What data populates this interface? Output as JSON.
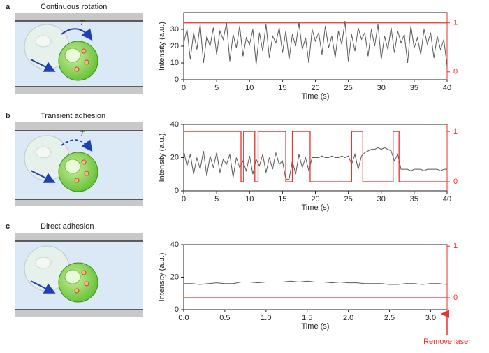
{
  "chart_data": [
    {
      "type": "line",
      "panel_label": "a",
      "title": "Continuous rotation",
      "diagram_label": "T",
      "x_label": "Time (s)",
      "y_label": "Intensity (a.u.)",
      "xlim": [
        0,
        40
      ],
      "xticks": [
        0,
        5,
        10,
        15,
        20,
        25,
        30,
        35,
        40
      ],
      "ylim": [
        0,
        40
      ],
      "yticks": [
        0,
        10,
        20,
        30
      ],
      "y2lim": [
        -0.16,
        1.21
      ],
      "y2ticks": [
        0,
        1
      ],
      "x": [
        0,
        0.5,
        1,
        1.5,
        2,
        2.5,
        3,
        3.5,
        4,
        4.5,
        5,
        5.5,
        6,
        6.5,
        7,
        7.5,
        8,
        8.5,
        9,
        9.5,
        10,
        10.5,
        11,
        11.5,
        12,
        12.5,
        13,
        13.5,
        14,
        14.5,
        15,
        15.5,
        16,
        16.5,
        17,
        17.5,
        18,
        18.5,
        19,
        19.5,
        20,
        20.5,
        21,
        21.5,
        22,
        22.5,
        23,
        23.5,
        24,
        24.5,
        25,
        25.5,
        26,
        26.5,
        27,
        27.5,
        28,
        28.5,
        29,
        29.5,
        30,
        30.5,
        31,
        31.5,
        32,
        32.5,
        33,
        33.5,
        34,
        34.5,
        35,
        35.5,
        36,
        36.5,
        37,
        37.5,
        38,
        38.5,
        39,
        39.5,
        40
      ],
      "series": [
        {
          "color": "#5a5a5a",
          "values": [
            22,
            30,
            12,
            28,
            18,
            33,
            10,
            26,
            20,
            31,
            15,
            29,
            24,
            34,
            11,
            27,
            19,
            32,
            14,
            25,
            21,
            30,
            9,
            28,
            17,
            33,
            13,
            26,
            22,
            31,
            16,
            29,
            12,
            27,
            20,
            34,
            18,
            25,
            10,
            30,
            23,
            28,
            15,
            32,
            19,
            26,
            13,
            29,
            21,
            35,
            11,
            27,
            17,
            31,
            24,
            28,
            14,
            30,
            20,
            33,
            12,
            26,
            18,
            31,
            16,
            29,
            22,
            27,
            10,
            32,
            19,
            25,
            15,
            30,
            21,
            28,
            13,
            26,
            18,
            24,
            8
          ]
        },
        {
          "color": "#e8322e",
          "axis": "y2",
          "x": [
            0,
            40
          ],
          "values": [
            1,
            1
          ]
        }
      ]
    },
    {
      "type": "line",
      "panel_label": "b",
      "title": "Transient adhesion",
      "diagram_label": "T",
      "x_label": "Time (s)",
      "y_label": "Intensity (a.u.)",
      "xlim": [
        0,
        40
      ],
      "xticks": [
        0,
        5,
        10,
        15,
        20,
        25,
        30,
        35,
        40
      ],
      "ylim": [
        0,
        40
      ],
      "yticks": [
        0,
        20,
        40
      ],
      "y2lim": [
        -0.18,
        1.14
      ],
      "y2ticks": [
        0,
        1
      ],
      "x": [
        0,
        0.5,
        1,
        1.5,
        2,
        2.5,
        3,
        3.5,
        4,
        4.5,
        5,
        5.5,
        6,
        6.5,
        7,
        7.5,
        8,
        8.5,
        9,
        9.5,
        10,
        10.5,
        11,
        11.5,
        12,
        12.5,
        13,
        13.5,
        14,
        14.5,
        15,
        15.5,
        16,
        16.5,
        17,
        17.5,
        18,
        18.5,
        19,
        19.5,
        20,
        20.5,
        21,
        21.5,
        22,
        22.5,
        23,
        23.5,
        24,
        24.5,
        25,
        25.5,
        26,
        26.5,
        27,
        27.5,
        28,
        28.5,
        29,
        29.5,
        30,
        30.5,
        31,
        31.5,
        32,
        32.5,
        33,
        33.5,
        34,
        34.5,
        35,
        35.5,
        36,
        36.5,
        37,
        37.5,
        38,
        38.5,
        39,
        39.5,
        40
      ],
      "series": [
        {
          "color": "#5a5a5a",
          "values": [
            24,
            15,
            22,
            10,
            20,
            13,
            24,
            9,
            21,
            14,
            23,
            11,
            19,
            16,
            22,
            8,
            20,
            14,
            18,
            12,
            21,
            10,
            19,
            15,
            22,
            11,
            20,
            13,
            23,
            16,
            18,
            7,
            7,
            18,
            10,
            22,
            14,
            20,
            12,
            20,
            20,
            20,
            21,
            20,
            20,
            21,
            20,
            20,
            21,
            20,
            21,
            16,
            22,
            13,
            21,
            23,
            24,
            25,
            25,
            26,
            25,
            26,
            25,
            24,
            18,
            22,
            13,
            13,
            13,
            12,
            13,
            13,
            13,
            12,
            13,
            13,
            13,
            13,
            12,
            13,
            13
          ]
        },
        {
          "color": "#e8322e",
          "axis": "y2",
          "x": [
            0,
            8.7,
            8.7,
            9.1,
            9.1,
            10.8,
            10.8,
            11.3,
            11.3,
            15.5,
            15.5,
            16.5,
            16.5,
            19.2,
            19.2,
            25.5,
            25.5,
            27.2,
            27.2,
            31.8,
            31.8,
            32.7,
            32.7,
            40
          ],
          "values": [
            1,
            1,
            0,
            0,
            1,
            1,
            0,
            0,
            1,
            1,
            0,
            0,
            1,
            1,
            0,
            0,
            1,
            1,
            0,
            0,
            1,
            1,
            0,
            0
          ]
        }
      ]
    },
    {
      "type": "line",
      "panel_label": "c",
      "title": "Direct adhesion",
      "x_label": "Time (s)",
      "y_label": "Intensity (a.u.)",
      "annotation": "Remove laser",
      "xlim": [
        0,
        3.2
      ],
      "xticks": [
        {
          "value": 0,
          "label": "0.0"
        },
        0.5,
        {
          "value": 1,
          "label": "1.0"
        },
        1.5,
        {
          "value": 2,
          "label": "2.0"
        },
        2.5,
        {
          "value": 3,
          "label": "3.0"
        }
      ],
      "ylim": [
        0,
        40
      ],
      "yticks": [
        0,
        20,
        40
      ],
      "y2lim": [
        -0.23,
        1.03
      ],
      "y2ticks": [
        0,
        1
      ],
      "x": [
        0,
        0.1,
        0.2,
        0.3,
        0.4,
        0.5,
        0.6,
        0.7,
        0.8,
        0.9,
        1,
        1.1,
        1.2,
        1.3,
        1.4,
        1.5,
        1.6,
        1.7,
        1.8,
        1.9,
        2,
        2.1,
        2.2,
        2.3,
        2.4,
        2.5,
        2.6,
        2.7,
        2.8,
        2.9,
        3,
        3.1,
        3.2
      ],
      "series": [
        {
          "color": "#5a5a5a",
          "values": [
            16,
            16,
            15.5,
            16,
            16.5,
            16,
            16,
            17,
            17,
            16.5,
            17,
            17,
            17,
            17.5,
            17,
            17.5,
            17,
            17,
            16.5,
            17,
            16.5,
            16.5,
            16,
            16,
            16,
            15.5,
            15.5,
            16,
            16,
            15.5,
            16,
            16,
            15.5
          ]
        },
        {
          "color": "#e8322e",
          "axis": "y2",
          "x": [
            0,
            3.2
          ],
          "values": [
            0,
            0
          ]
        }
      ]
    }
  ]
}
